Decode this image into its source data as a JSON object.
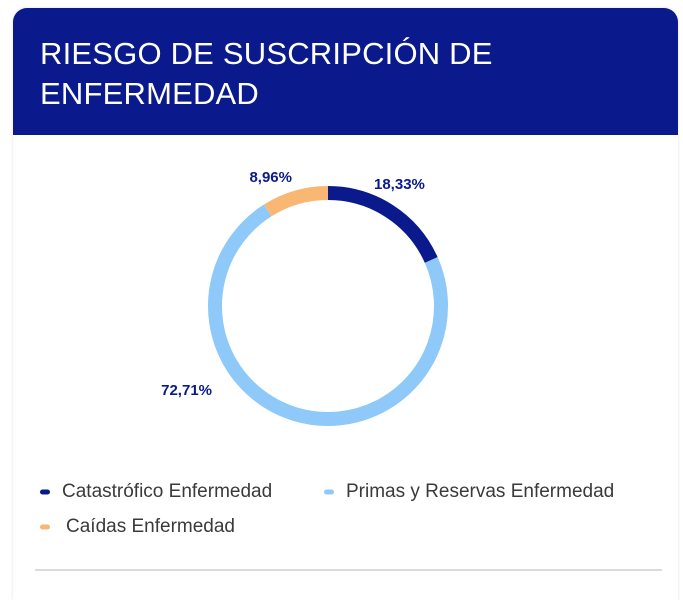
{
  "chart_data": {
    "type": "donut",
    "title": "RIESGO DE SUSCRIPCIÓN DE ENFERMEDAD",
    "categories": [
      "Catastrófico Enfermedad",
      "Primas y Reservas Enfermedad",
      "Caídas Enfermedad"
    ],
    "values": [
      18.33,
      72.71,
      8.96
    ],
    "value_labels": [
      "18,33%",
      "72,71%",
      "8,96%"
    ],
    "colors": [
      "#0a1a8c",
      "#8ec9f9",
      "#f9b774"
    ]
  }
}
